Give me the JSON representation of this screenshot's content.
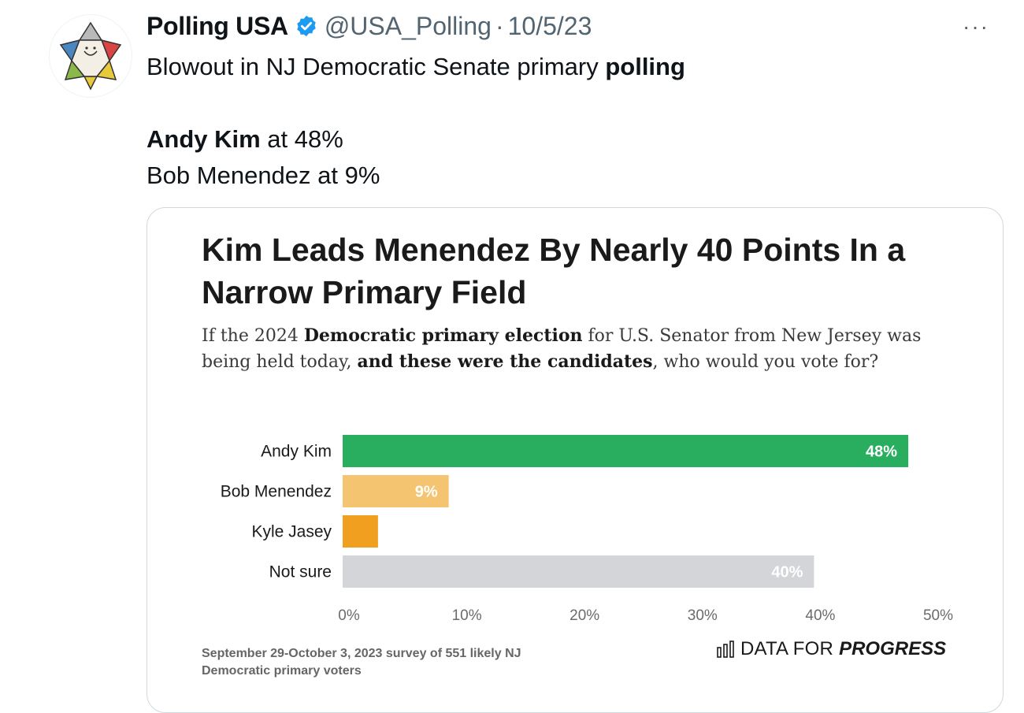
{
  "tweet": {
    "author_name": "Polling USA",
    "handle": "@USA_Polling",
    "separator": "·",
    "date": "10/5/23",
    "more_label": "···",
    "text_line1_plain": "Blowout in NJ Democratic Senate primary ",
    "text_line1_bold": "polling",
    "text_line2_bold": "Andy Kim",
    "text_line2_plain": " at 48%",
    "text_line3": "Bob Menendez at 9%"
  },
  "chart_card": {
    "title": "Kim Leads Menendez By Nearly 40 Points In a Narrow Primary Field",
    "subtitle_parts": {
      "p1": "If the 2024 ",
      "b1": "Democratic primary election",
      "p2": " for U.S. Senator from New Jersey was being held today, ",
      "b2": "and these were the candidates",
      "p3": ", who would you vote for?"
    },
    "footnote": "September 29-October 3, 2023 survey of 551 likely NJ Democratic primary voters",
    "brand_plain": "DATA FOR",
    "brand_bold": "PROGRESS"
  },
  "chart_data": {
    "type": "bar",
    "orientation": "horizontal",
    "categories": [
      "Andy Kim",
      "Bob Menendez",
      "Kyle Jasey",
      "Not sure"
    ],
    "values": [
      48,
      9,
      3,
      40
    ],
    "value_labels": [
      "48%",
      "9%",
      "",
      "40%"
    ],
    "colors": [
      "#29ad5e",
      "#f5c470",
      "#f0a01e",
      "#d4d5d8"
    ],
    "label_colors": [
      "#ffffff",
      "#ffffff",
      "#ffffff",
      "#ffffff"
    ],
    "xlim": [
      0,
      50
    ],
    "ticks": [
      0,
      10,
      20,
      30,
      40,
      50
    ],
    "tick_labels": [
      "0%",
      "10%",
      "20%",
      "30%",
      "40%",
      "50%"
    ],
    "grid": false
  }
}
